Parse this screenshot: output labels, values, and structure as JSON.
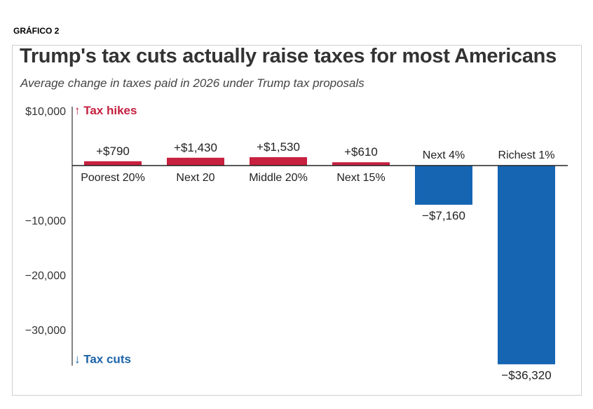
{
  "caption": "GRÁFICO 2",
  "chart_data": {
    "type": "bar",
    "title": "Trump's tax cuts actually raise taxes for most Americans",
    "subtitle": "Average change in taxes paid in 2026 under Trump tax proposals",
    "categories": [
      "Poorest 20%",
      "Next 20",
      "Middle 20%",
      "Next 15%",
      "Next 4%",
      "Richest 1%"
    ],
    "values": [
      790,
      1430,
      1530,
      610,
      -7160,
      -36320
    ],
    "value_labels": [
      "+$790",
      "+$1,430",
      "+$1,530",
      "+$610",
      "−$7,160",
      "−$36,320"
    ],
    "y_ticks": [
      10000,
      0,
      -10000,
      -20000,
      -30000
    ],
    "y_tick_labels": [
      "$10,000",
      "",
      "−10,000",
      "−20,000",
      "−30,000"
    ],
    "ylim": [
      -36320,
      10000
    ],
    "positive_label": "↑ Tax hikes",
    "negative_label": "↓ Tax cuts",
    "colors": {
      "positive": "#c8203f",
      "negative": "#1565b3"
    }
  }
}
